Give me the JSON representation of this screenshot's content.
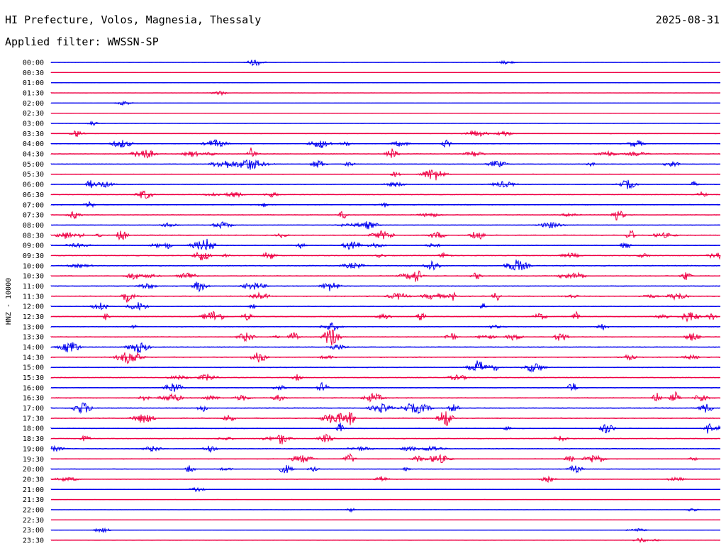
{
  "header": {
    "location": "HI Prefecture, Volos, Magnesia, Thessaly",
    "date": "2025-08-31",
    "filter": "Applied filter: WWSSN-SP"
  },
  "chart_data": {
    "type": "line",
    "title": "HI Prefecture, Volos, Magnesia, Thessaly",
    "subtitle": "Applied filter: WWSSN-SP",
    "ylabel": "HNZ - 10000",
    "xlabel": "",
    "grid": false,
    "legend": "none",
    "colors": [
      "#0000ee",
      "#ee0044"
    ],
    "rows": [
      "00:00",
      "00:30",
      "01:00",
      "01:30",
      "02:00",
      "02:30",
      "03:00",
      "03:30",
      "04:00",
      "04:30",
      "05:00",
      "05:30",
      "06:00",
      "06:30",
      "07:00",
      "07:30",
      "08:00",
      "08:30",
      "09:00",
      "09:30",
      "10:00",
      "10:30",
      "11:00",
      "11:30",
      "12:00",
      "12:30",
      "13:00",
      "13:30",
      "14:00",
      "14:30",
      "15:00",
      "15:30",
      "16:00",
      "16:30",
      "17:00",
      "17:30",
      "18:00",
      "18:30",
      "19:00",
      "19:30",
      "20:00",
      "20:30",
      "21:00",
      "21:30",
      "22:00",
      "22:30",
      "23:00",
      "23:30"
    ],
    "noise_level": [
      0.6,
      0.4,
      0.6,
      0.5,
      0.5,
      0.5,
      0.4,
      0.7,
      1.0,
      1.2,
      1.1,
      1.0,
      1.0,
      1.1,
      1.4,
      1.3,
      1.0,
      1.4,
      1.3,
      1.3,
      1.6,
      1.3,
      1.3,
      1.4,
      1.3,
      1.3,
      1.3,
      1.3,
      1.4,
      1.4,
      1.4,
      1.4,
      1.3,
      1.4,
      1.4,
      1.5,
      1.4,
      1.3,
      1.3,
      1.1,
      0.9,
      0.8,
      0.6,
      0.5,
      0.4,
      0.4,
      0.4,
      0.4
    ]
  }
}
